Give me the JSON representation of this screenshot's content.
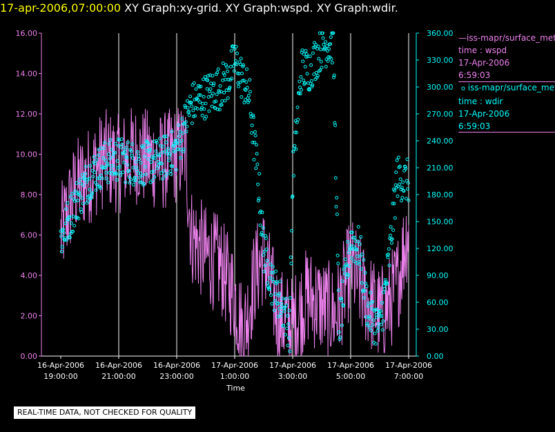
{
  "header": {
    "timestamp": "17-apr-2006,07:00:00",
    "graphs": "  XY Graph:xy-grid.  XY Graph:wspd.  XY Graph:wdir."
  },
  "legend": {
    "series1_name": "iss-mapr/surface_met",
    "series1_param": "time : wspd",
    "series1_date": "17-Apr-2006",
    "series1_time": "6:59:03",
    "series2_name": "iss-mapr/surface_met",
    "series2_param": "time : wdir",
    "series2_date": "17-Apr-2006",
    "series2_time": "6:59:03"
  },
  "footer": {
    "quality_notice": "REAL-TIME DATA, NOT CHECKED FOR QUALITY"
  },
  "colors": {
    "wspd": "#ee82ee",
    "wdir": "#00ffff",
    "grid": "#ffffff",
    "title_time": "#ffff00"
  },
  "chart_data": {
    "type": "line",
    "title": "XY Graph",
    "xlabel": "Time",
    "x_ticks": [
      {
        "t": 0,
        "date": "16-Apr-2006",
        "time": "19:00:00"
      },
      {
        "t": 2,
        "date": "16-Apr-2006",
        "time": "21:00:00"
      },
      {
        "t": 4,
        "date": "16-Apr-2006",
        "time": "23:00:00"
      },
      {
        "t": 6,
        "date": "17-Apr-2006",
        "time": "1:00:00"
      },
      {
        "t": 8,
        "date": "17-Apr-2006",
        "time": "3:00:00"
      },
      {
        "t": 10,
        "date": "17-Apr-2006",
        "time": "5:00:00"
      },
      {
        "t": 12,
        "date": "17-Apr-2006",
        "time": "7:00:00"
      }
    ],
    "grid_hours": [
      2,
      4,
      6,
      8,
      10,
      12
    ],
    "x_range_hours": [
      0,
      12
    ],
    "y_left": {
      "label": "wspd",
      "range": [
        0,
        16
      ],
      "ticks": [
        "0.00",
        "2.00",
        "4.00",
        "6.00",
        "8.00",
        "10.00",
        "12.00",
        "14.00",
        "16.00"
      ]
    },
    "y_right": {
      "label": "wdir",
      "range": [
        0,
        360
      ],
      "ticks": [
        "0.00",
        "30.00",
        "60.00",
        "90.00",
        "120.00",
        "150.00",
        "180.00",
        "210.00",
        "240.00",
        "270.00",
        "300.00",
        "330.00",
        "360.00"
      ]
    },
    "series": [
      {
        "name": "wspd",
        "axis": "left",
        "style": "line",
        "points": [
          [
            0.0,
            6.0
          ],
          [
            0.5,
            8.3
          ],
          [
            1.0,
            9.0
          ],
          [
            1.5,
            9.8
          ],
          [
            2.0,
            9.5
          ],
          [
            2.5,
            10.0
          ],
          [
            3.0,
            9.8
          ],
          [
            3.5,
            9.6
          ],
          [
            4.0,
            10.0
          ],
          [
            4.3,
            10.2
          ],
          [
            4.5,
            6.0
          ],
          [
            5.0,
            5.0
          ],
          [
            5.5,
            4.5
          ],
          [
            6.0,
            3.0
          ],
          [
            6.3,
            1.0
          ],
          [
            6.7,
            4.0
          ],
          [
            7.0,
            5.0
          ],
          [
            7.5,
            2.0
          ],
          [
            8.0,
            1.5
          ],
          [
            8.5,
            3.0
          ],
          [
            9.0,
            2.5
          ],
          [
            9.5,
            2.0
          ],
          [
            10.0,
            4.5
          ],
          [
            10.5,
            3.0
          ],
          [
            11.0,
            2.0
          ],
          [
            11.3,
            2.5
          ],
          [
            11.6,
            3.5
          ],
          [
            12.0,
            6.5
          ]
        ],
        "noise": 2.5
      },
      {
        "name": "wdir",
        "axis": "right",
        "style": "markers",
        "points": [
          [
            0.0,
            130
          ],
          [
            0.5,
            170
          ],
          [
            1.0,
            200
          ],
          [
            1.5,
            215
          ],
          [
            2.0,
            220
          ],
          [
            2.5,
            215
          ],
          [
            3.0,
            215
          ],
          [
            3.5,
            220
          ],
          [
            4.0,
            230
          ],
          [
            4.5,
            280
          ],
          [
            5.0,
            290
          ],
          [
            5.5,
            300
          ],
          [
            5.8,
            310
          ],
          [
            6.0,
            330
          ],
          [
            6.5,
            290
          ],
          [
            6.8,
            200
          ],
          [
            7.0,
            120
          ],
          [
            7.3,
            80
          ],
          [
            7.6,
            60
          ],
          [
            7.9,
            30
          ],
          [
            8.0,
            200
          ],
          [
            8.3,
            320
          ],
          [
            8.6,
            320
          ],
          [
            9.0,
            345
          ],
          [
            9.4,
            350
          ],
          [
            9.6,
            30
          ],
          [
            10.0,
            130
          ],
          [
            10.3,
            120
          ],
          [
            10.6,
            50
          ],
          [
            11.0,
            30
          ],
          [
            11.3,
            100
          ],
          [
            11.6,
            200
          ],
          [
            11.9,
            195
          ]
        ],
        "noise": 25
      }
    ]
  }
}
